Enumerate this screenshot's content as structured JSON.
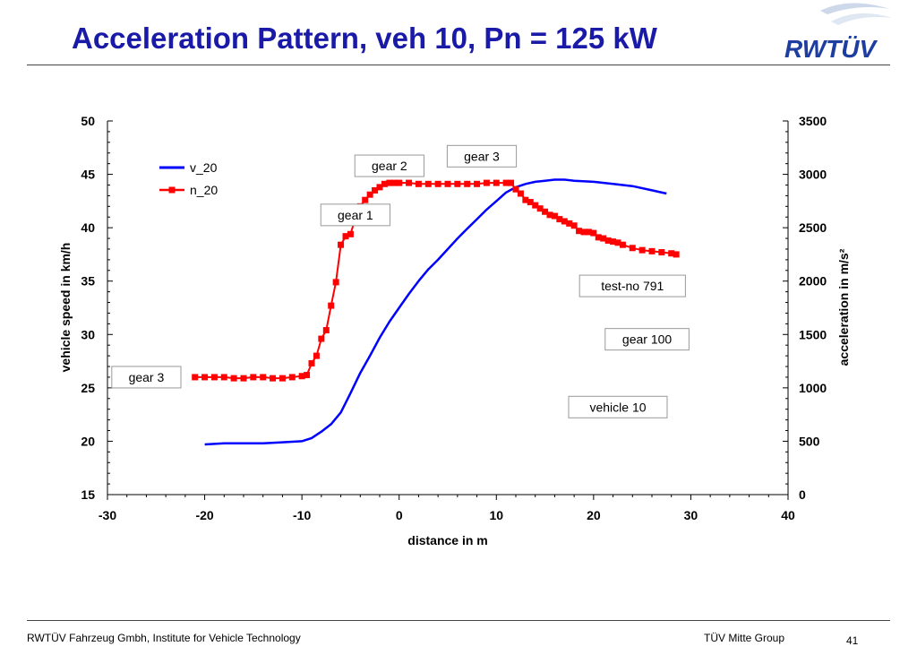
{
  "slide": {
    "title": "Acceleration Pattern, veh 10, Pn = 125 kW",
    "logo_text": "RWTÜV",
    "footer_left": "RWTÜV Fahrzeug Gmbh, Institute for Vehicle Technology",
    "footer_right": "TÜV Mitte Group",
    "page_number": "41"
  },
  "colors": {
    "title": "#1a1aa8",
    "v_20": "#0000ff",
    "n_20": "#ff0000",
    "logo": "#1e3da0"
  },
  "chart_data": {
    "type": "line",
    "title": "",
    "xlabel": "distance in m",
    "ylabel": "vehicle speed in km/h",
    "y2label": "acceleration in m/s²",
    "xlim": [
      -30,
      40
    ],
    "ylim": [
      15,
      50
    ],
    "y2lim": [
      0,
      3500
    ],
    "x_ticks": [
      "-30",
      "-20",
      "-10",
      "0",
      "10",
      "20",
      "30",
      "40"
    ],
    "y_ticks": [
      "15",
      "20",
      "25",
      "30",
      "35",
      "40",
      "45",
      "50"
    ],
    "y2_ticks": [
      "0",
      "500",
      "1000",
      "1500",
      "2000",
      "2500",
      "3000",
      "3500"
    ],
    "grid": false,
    "legend_position": "top-left",
    "series": [
      {
        "name": "v_20",
        "axis": "left",
        "marker": "none",
        "x": [
          -20,
          -18,
          -16,
          -14,
          -12,
          -10,
          -9,
          -8,
          -7,
          -6,
          -5,
          -4,
          -3,
          -2,
          -1,
          0,
          1,
          2,
          3,
          4,
          5,
          6,
          7,
          8,
          9,
          10,
          11,
          12,
          13,
          14,
          15,
          16,
          17,
          18,
          20,
          22,
          24,
          26,
          27.5
        ],
        "y": [
          19.7,
          19.8,
          19.8,
          19.8,
          19.9,
          20.0,
          20.3,
          20.9,
          21.6,
          22.7,
          24.5,
          26.4,
          28.0,
          29.7,
          31.2,
          32.5,
          33.8,
          35.0,
          36.1,
          37.0,
          38.0,
          39.0,
          39.9,
          40.8,
          41.7,
          42.5,
          43.3,
          43.8,
          44.1,
          44.3,
          44.4,
          44.5,
          44.5,
          44.4,
          44.3,
          44.1,
          43.9,
          43.5,
          43.2
        ]
      },
      {
        "name": "n_20",
        "axis": "right",
        "marker": "square",
        "x": [
          -21,
          -20,
          -19,
          -18,
          -17,
          -16,
          -15,
          -14,
          -13,
          -12,
          -11,
          -10,
          -9.5,
          -9,
          -8.5,
          -8,
          -7.5,
          -7,
          -6.5,
          -6,
          -5.5,
          -5,
          -4.5,
          -4,
          -3.5,
          -3,
          -2.5,
          -2,
          -1.5,
          -1,
          -0.5,
          0,
          1,
          2,
          3,
          4,
          5,
          6,
          7,
          8,
          9,
          10,
          11,
          11.5,
          12,
          12.5,
          13,
          13.5,
          14,
          14.5,
          15,
          15.5,
          16,
          16.5,
          17,
          17.5,
          18,
          18.5,
          19,
          19.5,
          20,
          20.5,
          21,
          21.5,
          22,
          22.5,
          23,
          24,
          25,
          26,
          27,
          28,
          28.5
        ],
        "y": [
          1100,
          1100,
          1100,
          1100,
          1090,
          1090,
          1100,
          1100,
          1090,
          1090,
          1100,
          1110,
          1120,
          1230,
          1300,
          1460,
          1540,
          1770,
          1990,
          2340,
          2420,
          2440,
          2590,
          2700,
          2760,
          2810,
          2850,
          2880,
          2910,
          2920,
          2920,
          2920,
          2920,
          2910,
          2910,
          2910,
          2910,
          2910,
          2910,
          2910,
          2920,
          2920,
          2920,
          2920,
          2860,
          2820,
          2760,
          2740,
          2710,
          2680,
          2650,
          2620,
          2610,
          2580,
          2560,
          2540,
          2520,
          2470,
          2460,
          2460,
          2450,
          2410,
          2400,
          2380,
          2370,
          2360,
          2340,
          2310,
          2290,
          2280,
          2270,
          2260,
          2250
        ]
      }
    ],
    "annotations": [
      {
        "text": "gear 3",
        "x": -26,
        "y2": 1100
      },
      {
        "text": "gear 1",
        "x": -4.5,
        "y2": 2620
      },
      {
        "text": "gear 2",
        "x": -1,
        "y2": 3080
      },
      {
        "text": "gear 3",
        "x": 8.5,
        "y2": 3170
      },
      {
        "text": "test-no 791",
        "x": 24,
        "y2": 1955
      },
      {
        "text": "gear 100",
        "x": 25.5,
        "y2": 1455
      },
      {
        "text": "vehicle 10",
        "x": 22.5,
        "y2": 820
      }
    ]
  }
}
